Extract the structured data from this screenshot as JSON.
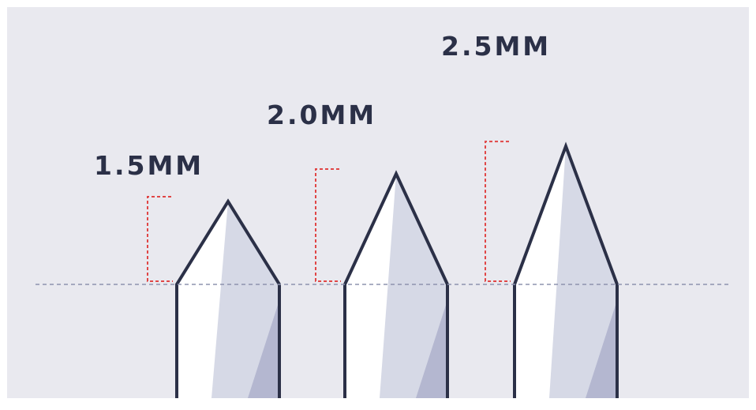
{
  "colors": {
    "background": "#e9e9ef",
    "outline": "#2b3047",
    "highlight": "#ffffff",
    "shade_light": "#d6d9e6",
    "shade_dark": "#b4b7d0",
    "bracket": "#e04646",
    "baseline": "#8e93ad",
    "label": "#2b3047"
  },
  "tips": [
    {
      "label": "1.5MM",
      "length_mm": 1.5
    },
    {
      "label": "2.0MM",
      "length_mm": 2.0
    },
    {
      "label": "2.5MM",
      "length_mm": 2.5
    }
  ]
}
